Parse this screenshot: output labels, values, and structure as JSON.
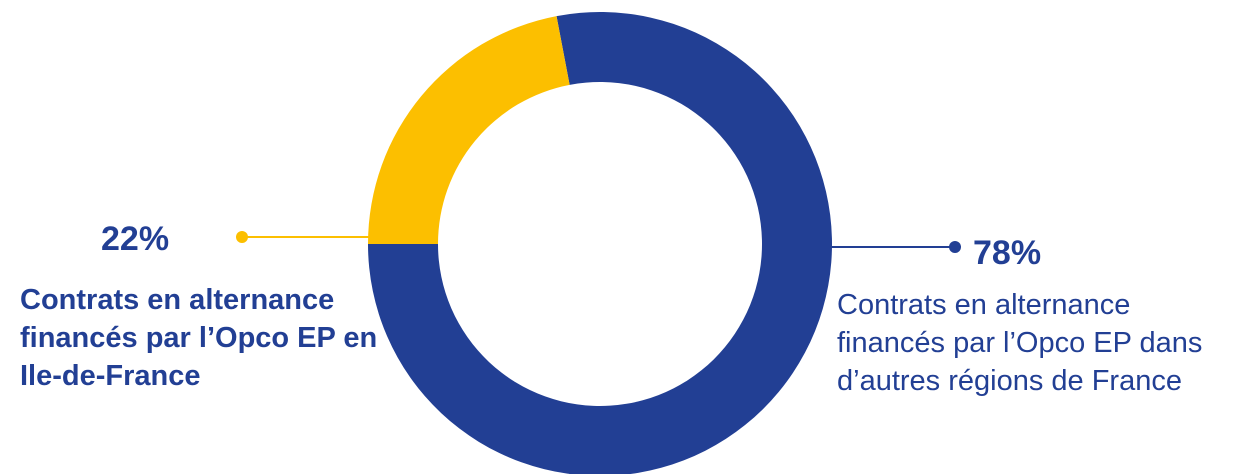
{
  "colors": {
    "blue": "#223f94",
    "yellow": "#fcbf00",
    "background": "#ffffff"
  },
  "chart_data": {
    "type": "pie",
    "variant": "donut",
    "title": "",
    "categories": [
      "Contrats en alternance financés par l’Opco EP dans d’autres régions de France",
      "Contrats en alternance financés par l’Opco EP en Ile-de-France"
    ],
    "values": [
      78,
      22
    ],
    "value_labels": [
      "78%",
      "22%"
    ],
    "colors": [
      "#223f94",
      "#fcbf00"
    ],
    "legend": "none"
  },
  "annotations": {
    "left": {
      "value": "22%",
      "text": "Contrats en alternance financés par l’Opco EP en Ile-de-France"
    },
    "right": {
      "value": "78%",
      "text": "Contrats en alternance financés par l’Opco EP dans d’autres régions de France"
    }
  }
}
